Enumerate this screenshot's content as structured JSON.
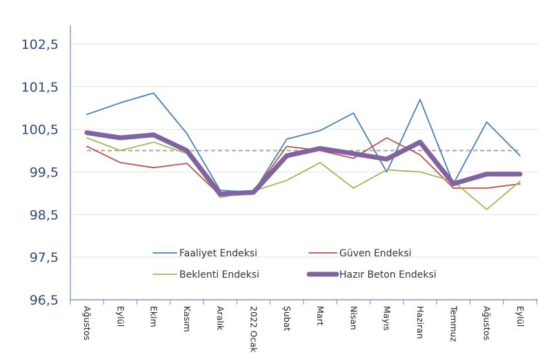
{
  "chart_data": {
    "type": "line",
    "categories": [
      "Ağustos",
      "Eylül",
      "Ekim",
      "Kasım",
      "Aralık",
      "2022 Ocak",
      "Şubat",
      "Mart",
      "Nisan",
      "Mayıs",
      "Haziran",
      "Temmuz",
      "Ağustos",
      "Eylül"
    ],
    "y_ticks": [
      "102,5",
      "101,5",
      "100,5",
      "99,5",
      "98,5",
      "97,5",
      "96,5"
    ],
    "ylim": [
      96.5,
      103.0
    ],
    "reference_line": 100,
    "grid": true,
    "legend_position": "bottom-center",
    "series": [
      {
        "name": "Faaliyet Endeksi",
        "color": "#4a7ebb",
        "width": "thin",
        "values": [
          100.85,
          101.12,
          101.35,
          100.4,
          99.07,
          99.02,
          100.27,
          100.47,
          100.88,
          99.5,
          101.2,
          99.22,
          100.67,
          99.88
        ]
      },
      {
        "name": "Güven Endeksi",
        "color": "#c0504d",
        "width": "thin",
        "values": [
          100.1,
          99.72,
          99.6,
          99.7,
          98.95,
          99.03,
          100.1,
          100.0,
          99.82,
          100.3,
          99.9,
          99.12,
          99.12,
          99.22
        ]
      },
      {
        "name": "Beklenti Endeksi",
        "color": "#9bbb59",
        "width": "thin",
        "values": [
          100.3,
          100.0,
          100.2,
          99.93,
          98.9,
          99.05,
          99.3,
          99.72,
          99.12,
          99.55,
          99.5,
          99.28,
          98.62,
          99.28
        ]
      },
      {
        "name": "Hazır Beton Endeksi",
        "color": "#8064a2",
        "width": "thick",
        "values": [
          100.42,
          100.3,
          100.37,
          100.0,
          98.98,
          99.02,
          99.88,
          100.05,
          99.93,
          99.8,
          100.2,
          99.22,
          99.45,
          99.45
        ]
      }
    ]
  }
}
